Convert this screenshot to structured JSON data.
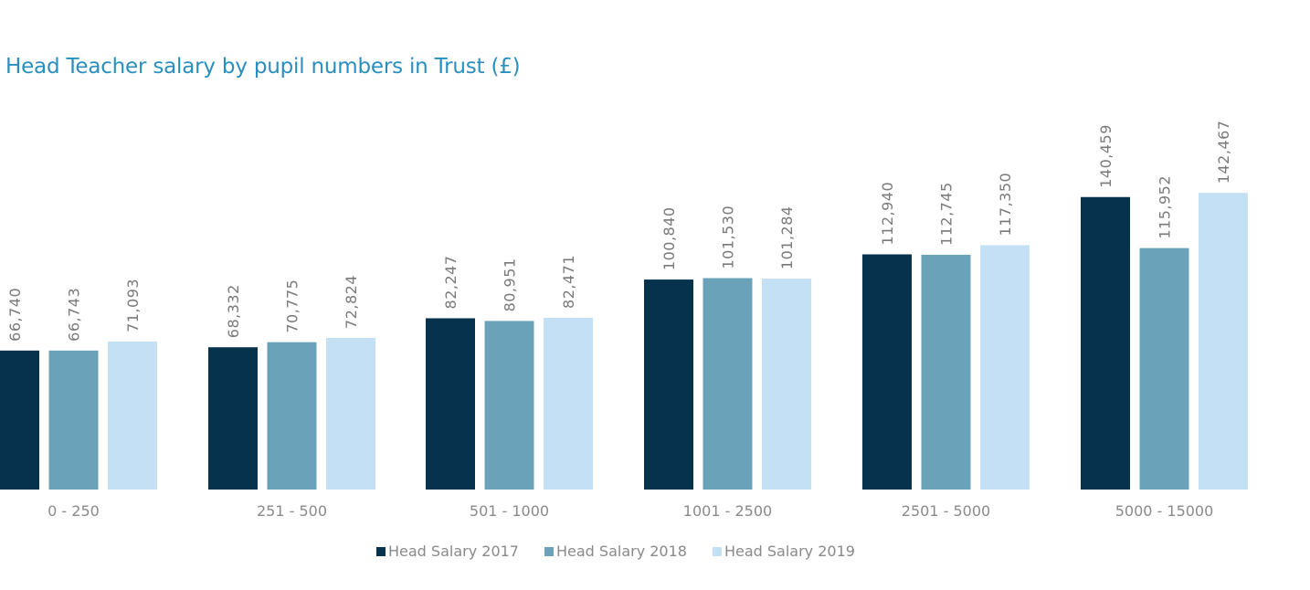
{
  "chart_data": {
    "type": "bar",
    "title": "Head Teacher salary by pupil numbers in Trust (£)",
    "categories": [
      "0 - 250",
      "251 - 500",
      "501 - 1000",
      "1001 - 2500",
      "2501 - 5000",
      "5000 - 15000"
    ],
    "series": [
      {
        "name": "Head Salary 2017",
        "color": "#07324d",
        "values": [
          66740,
          68332,
          82247,
          100840,
          112940,
          140459
        ],
        "labels": [
          "66,740",
          "68,332",
          "82,247",
          "100,840",
          "112,940",
          "140,459"
        ]
      },
      {
        "name": "Head Salary 2018",
        "color": "#6aa3b9",
        "values": [
          66743,
          70775,
          80951,
          101530,
          112745,
          115952
        ],
        "labels": [
          "66,743",
          "70,775",
          "80,951",
          "101,530",
          "112,745",
          "115,952"
        ]
      },
      {
        "name": "Head Salary 2019",
        "color": "#c4e0f4",
        "values": [
          71093,
          72824,
          82471,
          101284,
          117350,
          142467
        ],
        "labels": [
          "71,093",
          "72,824",
          "82,471",
          "101,284",
          "117,350",
          "142,467"
        ]
      }
    ],
    "ylim": [
      0,
      142467
    ],
    "grid": false,
    "legend_position": "bottom"
  }
}
